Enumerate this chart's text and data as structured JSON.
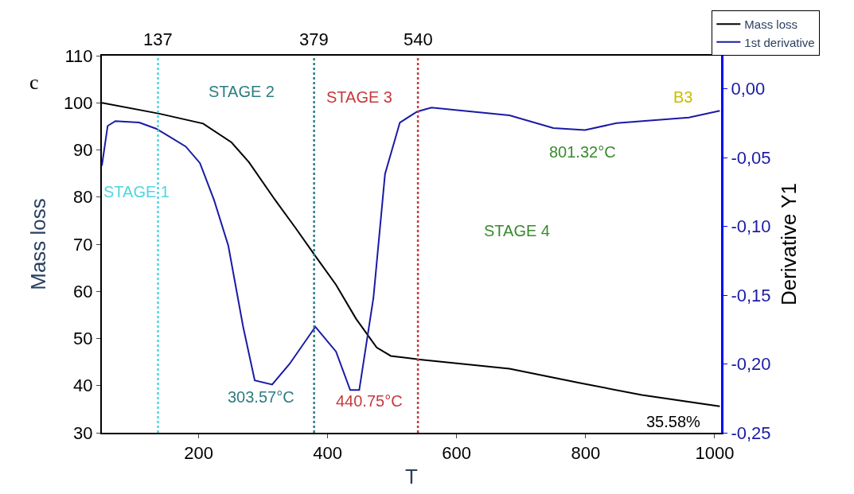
{
  "chart_data": {
    "type": "line",
    "xlabel": "T",
    "ylabel": "Mass loss",
    "y2label": "Derivative Y1",
    "xlim": [
      50,
      1010
    ],
    "xticks": [
      200,
      400,
      600,
      800,
      1000
    ],
    "ylim": [
      30,
      110
    ],
    "yticks": [
      30,
      40,
      50,
      60,
      70,
      80,
      90,
      100,
      110
    ],
    "y2lim": [
      -0.25,
      0.024
    ],
    "y2ticks": [
      {
        "value": 0,
        "label": "0,00"
      },
      {
        "value": -0.05,
        "label": "-0,05"
      },
      {
        "value": -0.1,
        "label": "-0,10"
      },
      {
        "value": -0.15,
        "label": "-0,15"
      },
      {
        "value": -0.2,
        "label": "-0,20"
      },
      {
        "value": -0.25,
        "label": "-0,25"
      }
    ],
    "legend": "top right",
    "marker": "none",
    "line_style": "solid",
    "series": [
      {
        "name": "Mass loss",
        "color": "#000000",
        "x": [
          50,
          139,
          207,
          251,
          278,
          318,
          350,
          381,
          413,
          444,
          476,
          498,
          546,
          682,
          790,
          887,
          1008
        ],
        "values": [
          100,
          97.7,
          95.6,
          91.6,
          87.4,
          79.5,
          73.5,
          67.5,
          61.4,
          54.2,
          48.1,
          46.3,
          45.5,
          43.6,
          40.6,
          38.0,
          35.6
        ]
      },
      {
        "name": "1st derivative",
        "color": "#1a1aa6",
        "axis": "y2",
        "x": [
          50,
          59,
          71,
          108,
          134,
          152,
          180,
          202,
          224,
          246,
          269,
          287,
          314,
          341,
          381,
          413,
          435,
          449,
          471,
          489,
          512,
          539,
          561,
          682,
          750,
          799,
          848,
          960,
          1008
        ],
        "values": [
          -0.056,
          -0.027,
          -0.0235,
          -0.0246,
          -0.029,
          -0.034,
          -0.042,
          -0.054,
          -0.081,
          -0.114,
          -0.173,
          -0.212,
          -0.215,
          -0.2,
          -0.173,
          -0.191,
          -0.219,
          -0.219,
          -0.152,
          -0.062,
          -0.0246,
          -0.0166,
          -0.0137,
          -0.0194,
          -0.0286,
          -0.03,
          -0.025,
          -0.021,
          -0.016
        ]
      }
    ],
    "ref_lines": [
      {
        "axis": "x",
        "value": 137,
        "label": "137",
        "color": "#4fd6e0",
        "line_style": "dotted"
      },
      {
        "axis": "x",
        "value": 379,
        "label": "379",
        "color": "#2e7d80",
        "line_style": "dotted"
      },
      {
        "axis": "x",
        "value": 540,
        "label": "540",
        "color": "#c8383c",
        "line_style": "dotted"
      }
    ],
    "annotations": [
      "c",
      "STAGE 1",
      "STAGE 2",
      "STAGE 3",
      "STAGE 4",
      "303.57°C",
      "440.75°C",
      "801.32°C",
      "35.58%",
      "B3"
    ]
  }
}
